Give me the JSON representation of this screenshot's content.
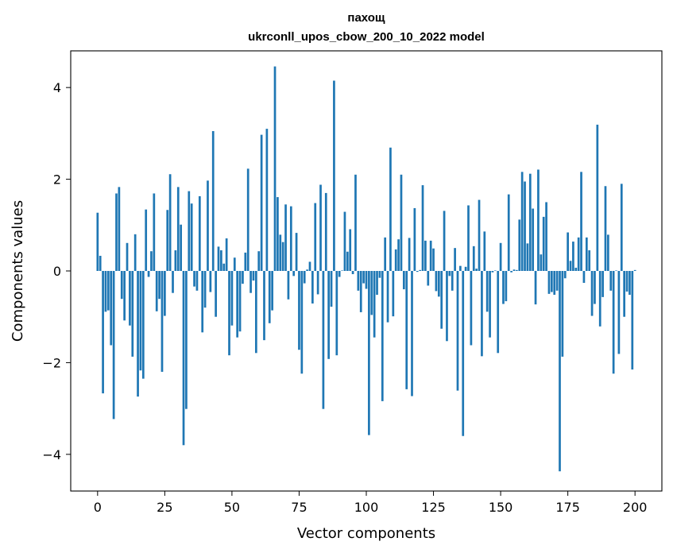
{
  "chart_data": {
    "type": "bar",
    "title_line1": "пахощ",
    "title_line2": "ukrconll_upos_cbow_200_10_2022 model",
    "xlabel": "Vector components",
    "ylabel": "Components values",
    "xlim": [
      -10,
      210
    ],
    "ylim": [
      -4.8,
      4.8
    ],
    "xticks": [
      0,
      25,
      50,
      75,
      100,
      125,
      150,
      175,
      200
    ],
    "yticks": [
      -4,
      -2,
      0,
      2,
      4
    ],
    "xtick_labels": [
      "0",
      "25",
      "50",
      "75",
      "100",
      "125",
      "150",
      "175",
      "200"
    ],
    "ytick_labels": [
      "−4",
      "−2",
      "0",
      "2",
      "4"
    ],
    "bar_color": "#1f77b4",
    "values": [
      1.27,
      0.33,
      -2.67,
      -0.89,
      -0.86,
      -1.62,
      -3.23,
      1.69,
      1.83,
      -0.61,
      -1.08,
      0.61,
      -1.19,
      -1.87,
      0.8,
      -2.74,
      -2.17,
      -2.35,
      1.34,
      -0.13,
      0.43,
      1.69,
      -0.88,
      -0.61,
      -2.2,
      -0.98,
      1.33,
      2.11,
      -0.48,
      0.45,
      1.83,
      1.01,
      -3.8,
      -3.01,
      1.74,
      1.47,
      -0.34,
      -0.43,
      1.63,
      -1.34,
      -0.8,
      1.97,
      -0.46,
      3.05,
      -1.0,
      0.53,
      0.45,
      0.16,
      0.71,
      -1.84,
      -1.19,
      0.29,
      -1.45,
      -1.32,
      -0.28,
      0.4,
      2.23,
      -0.48,
      -0.21,
      -1.79,
      0.43,
      2.97,
      -1.51,
      3.1,
      -1.14,
      -0.86,
      4.46,
      1.61,
      0.79,
      0.63,
      1.45,
      -0.62,
      1.41,
      -0.11,
      0.83,
      -1.72,
      -2.24,
      -0.27,
      0.03,
      0.2,
      -0.71,
      1.48,
      -0.51,
      1.88,
      -3.01,
      1.7,
      -1.92,
      -0.78,
      4.15,
      -1.84,
      -0.13,
      0.01,
      1.29,
      0.42,
      0.91,
      -0.07,
      2.1,
      -0.43,
      -0.9,
      -0.27,
      -0.39,
      -3.58,
      -0.96,
      -1.45,
      -0.52,
      -0.15,
      -2.84,
      0.73,
      -1.12,
      2.69,
      -0.99,
      0.47,
      0.69,
      2.1,
      -0.4,
      -2.58,
      0.72,
      -2.73,
      1.37,
      -0.02,
      0.02,
      1.87,
      0.66,
      -0.32,
      0.66,
      0.49,
      -0.44,
      -0.56,
      -1.26,
      1.31,
      -1.53,
      -0.11,
      -0.43,
      0.5,
      -2.61,
      0.11,
      -3.6,
      0.09,
      1.43,
      -1.62,
      0.54,
      0.05,
      1.55,
      -1.86,
      0.86,
      -0.89,
      -1.45,
      -0.03,
      0.01,
      -1.79,
      0.61,
      -0.72,
      -0.66,
      1.67,
      -0.03,
      0.03,
      0.02,
      1.12,
      2.16,
      1.95,
      0.6,
      2.12,
      1.36,
      -0.73,
      2.21,
      0.36,
      1.18,
      1.5,
      -0.5,
      -0.46,
      -0.52,
      -0.43,
      -4.37,
      -1.87,
      -0.16,
      0.84,
      0.22,
      0.64,
      0.07,
      0.73,
      2.16,
      -0.26,
      0.73,
      0.45,
      -0.98,
      -0.72,
      3.19,
      -1.21,
      -0.57,
      1.85,
      0.79,
      -0.43,
      -2.24,
      0.01,
      -1.81,
      1.9,
      -1.0,
      -0.45,
      -0.52,
      -2.15,
      0.02
    ]
  }
}
